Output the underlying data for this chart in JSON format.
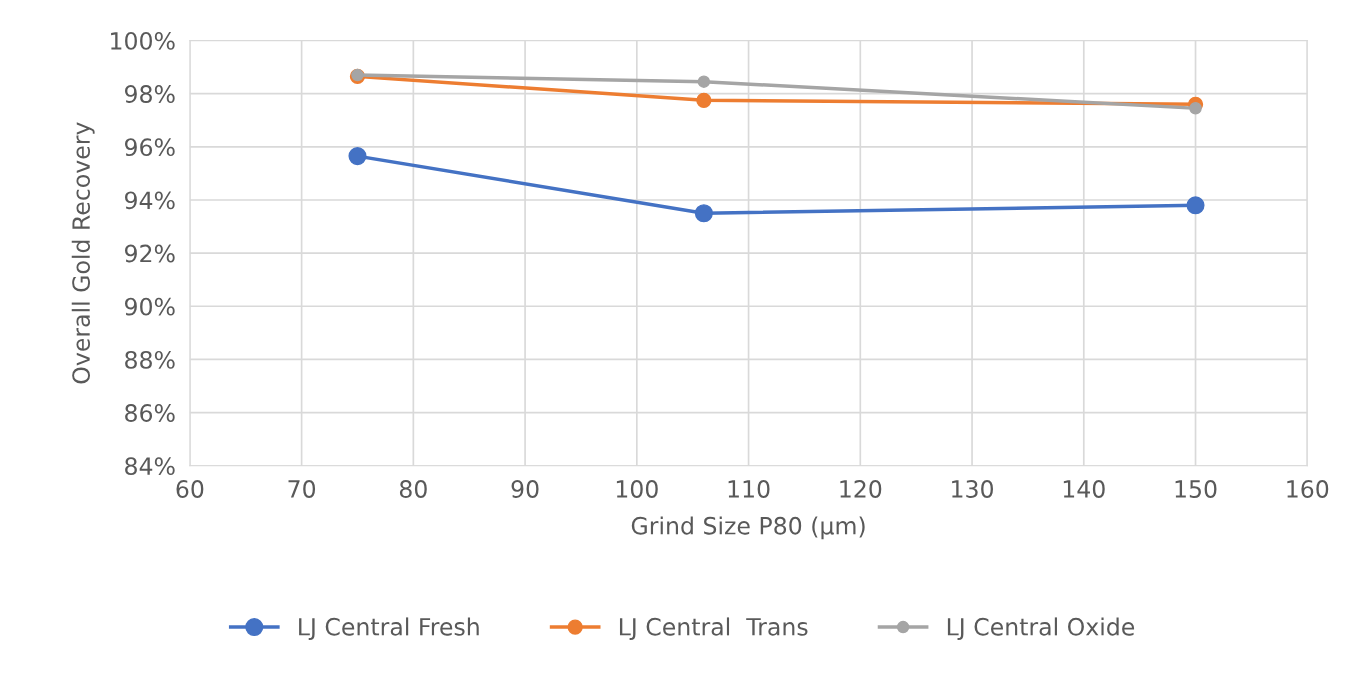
{
  "chart_data": {
    "type": "line",
    "xlabel": "Grind Size P80 (µm)",
    "ylabel": "Overall Gold Recovery",
    "x": [
      75,
      106,
      150
    ],
    "series": [
      {
        "name": "LJ Central Fresh",
        "color": "#4472c4",
        "values": [
          95.65,
          93.5,
          93.8
        ]
      },
      {
        "name": "LJ Central  Trans",
        "color": "#ed7d31",
        "values": [
          98.65,
          97.75,
          97.6
        ]
      },
      {
        "name": "LJ Central Oxide",
        "color": "#a5a5a5",
        "values": [
          98.7,
          98.45,
          97.45
        ]
      }
    ],
    "xlim": [
      60,
      160
    ],
    "xticks": [
      60,
      70,
      80,
      90,
      100,
      110,
      120,
      130,
      140,
      150,
      160
    ],
    "ylim": [
      84,
      100
    ],
    "yticks": [
      {
        "value": 84,
        "label": "84%"
      },
      {
        "value": 86,
        "label": "86%"
      },
      {
        "value": 88,
        "label": "88%"
      },
      {
        "value": 90,
        "label": "90%"
      },
      {
        "value": 92,
        "label": "92%"
      },
      {
        "value": 94,
        "label": "94%"
      },
      {
        "value": 96,
        "label": "96%"
      },
      {
        "value": 98,
        "label": "98%"
      },
      {
        "value": 100,
        "label": "100%"
      }
    ],
    "grid": true,
    "legend": "bottom",
    "marker": "circle",
    "line_style": "solid"
  }
}
